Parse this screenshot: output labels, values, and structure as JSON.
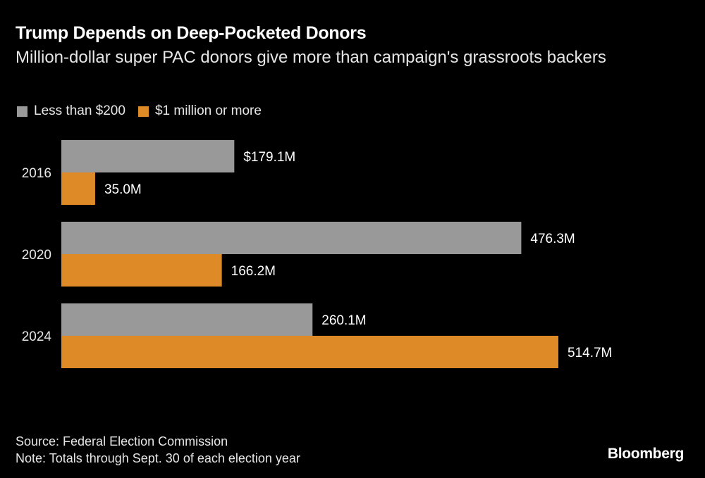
{
  "chart_data": {
    "type": "bar",
    "orientation": "horizontal",
    "title": "Trump Depends on Deep-Pocketed Donors",
    "subtitle": "Million-dollar super PAC donors give more than campaign's grassroots backers",
    "categories": [
      "2016",
      "2020",
      "2024"
    ],
    "series": [
      {
        "name": "Less than $200",
        "color": "#999999",
        "values": [
          179.1,
          476.3,
          260.1
        ],
        "labels": [
          "$179.1M",
          "476.3M",
          "260.1M"
        ]
      },
      {
        "name": "$1 million or more",
        "color": "#dd8a27",
        "values": [
          35.0,
          166.2,
          514.7
        ],
        "labels": [
          "35.0M",
          "166.2M",
          "514.7M"
        ]
      }
    ],
    "xlabel": "",
    "ylabel": "",
    "xlim": [
      0,
      514.7
    ],
    "grid": false,
    "legend": "top-left",
    "source": "Source: Federal Election Commission",
    "note": "Note: Totals through Sept. 30 of each election year"
  },
  "brand": "Bloomberg"
}
